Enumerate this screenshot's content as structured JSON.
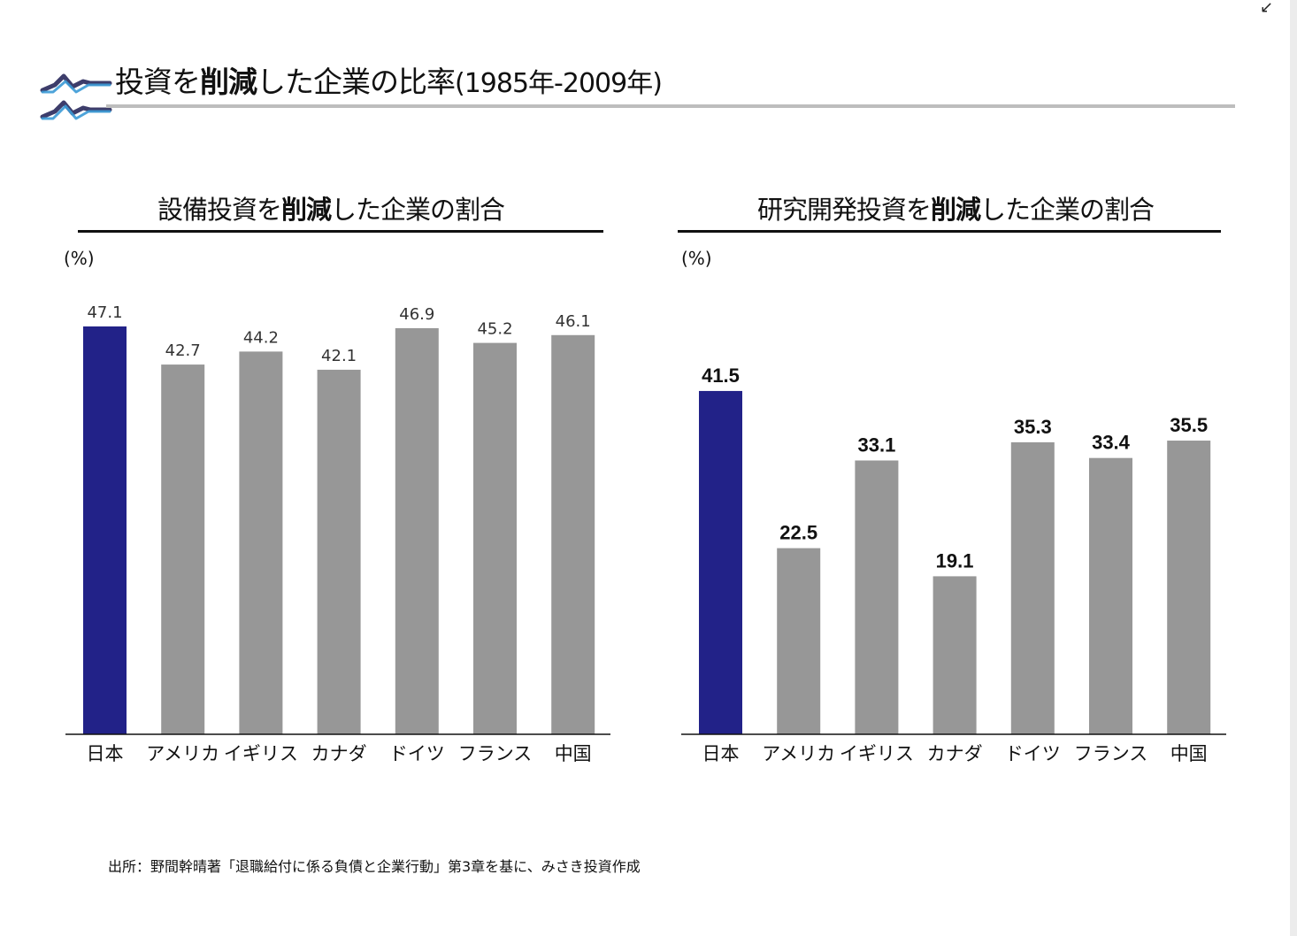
{
  "title": {
    "prefix": "投資を",
    "bold": "削減",
    "suffix": "した企業の比率",
    "years": "(1985年-2009年)"
  },
  "source_note": "出所：野間幹晴著「退職給付に係る負債と企業行動」第3章を基に、みさき投資作成",
  "colors": {
    "highlight": "#222288",
    "bar": "#979797",
    "title_rule": "#bdbdbd",
    "logo_dark": "#3d3d6b",
    "logo_light": "#3b9ad6"
  },
  "chart_data": [
    {
      "type": "bar",
      "title_prefix": "設備投資を",
      "title_bold": "削減",
      "title_suffix": "した企業の割合",
      "unit": "(%)",
      "categories": [
        "日本",
        "アメリカ",
        "イギリス",
        "カナダ",
        "ドイツ",
        "フランス",
        "中国"
      ],
      "values": [
        47.1,
        42.7,
        44.2,
        42.1,
        46.9,
        45.2,
        46.1
      ],
      "labels": [
        "47.1",
        "42.7",
        "44.2",
        "42.1",
        "46.9",
        "45.2",
        "46.1"
      ],
      "highlight_index": 0,
      "ylim": [
        0,
        47.1
      ],
      "label_style": "normal"
    },
    {
      "type": "bar",
      "title_prefix": "研究開発投資を",
      "title_bold": "削減",
      "title_suffix": "した企業の割合",
      "unit": "(%)",
      "categories": [
        "日本",
        "アメリカ",
        "イギリス",
        "カナダ",
        "ドイツ",
        "フランス",
        "中国"
      ],
      "values": [
        41.5,
        22.5,
        33.1,
        19.1,
        35.3,
        33.4,
        35.5
      ],
      "labels": [
        "41.5",
        "22.5",
        "33.1",
        "19.1",
        "35.3",
        "33.4",
        "35.5"
      ],
      "highlight_index": 0,
      "ylim": [
        0,
        49.3
      ],
      "label_style": "bold"
    }
  ]
}
